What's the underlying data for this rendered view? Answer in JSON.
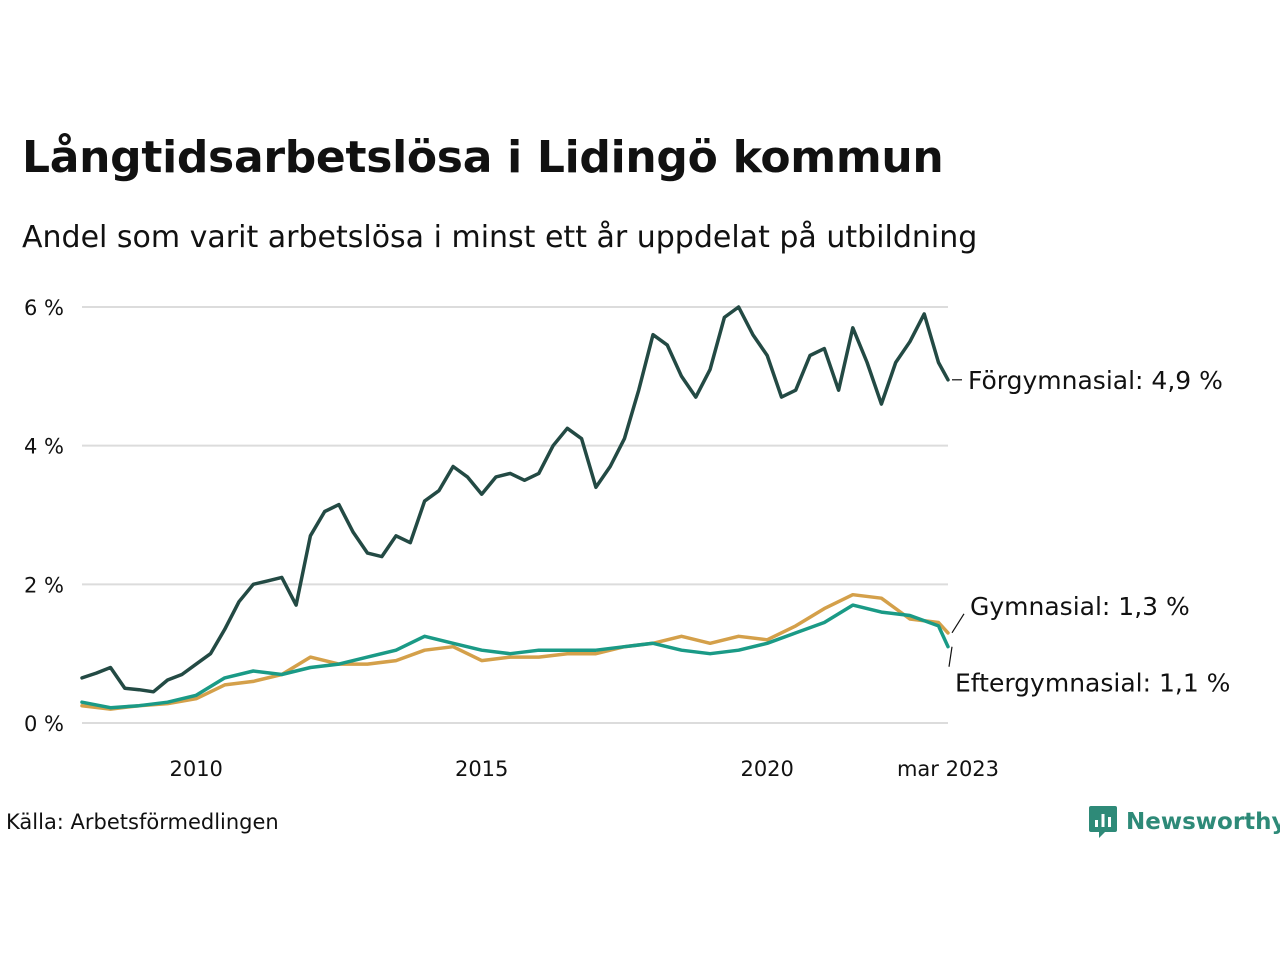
{
  "title": "Långtidsarbetslösa i Lidingö kommun",
  "subtitle": "Andel som varit arbetslösa i minst ett år uppdelat på utbildning",
  "source": "Källa: Arbetsförmedlingen",
  "brand": {
    "name": "Newsworthy",
    "color": "#2e8a78",
    "icon": "newsworthy-logo-icon"
  },
  "chart_data": {
    "type": "line",
    "title": "Långtidsarbetslösa i Lidingö kommun",
    "subtitle": "Andel som varit arbetslösa i minst ett år uppdelat på utbildning",
    "xlabel": "",
    "ylabel": "",
    "x_range": [
      "2008-01",
      "2023-03"
    ],
    "ylim": [
      0,
      6
    ],
    "y_ticks": [
      0,
      2,
      4,
      6
    ],
    "y_tick_labels": [
      "0 %",
      "2 %",
      "4 %",
      "6 %"
    ],
    "x_ticks": [
      {
        "x": "2010-01",
        "label": "2010"
      },
      {
        "x": "2015-01",
        "label": "2015"
      },
      {
        "x": "2020-01",
        "label": "2020"
      },
      {
        "x": "2023-03",
        "label": "mar 2023"
      }
    ],
    "grid": "horizontal",
    "legend": "direct labels at line ends",
    "series": [
      {
        "name": "Förgymnasial",
        "end_label": "Förgymnasial: 4,9 %",
        "color": "#234a44",
        "points": [
          [
            "2008-01",
            0.65
          ],
          [
            "2008-04",
            0.72
          ],
          [
            "2008-07",
            0.8
          ],
          [
            "2008-10",
            0.5
          ],
          [
            "2009-01",
            0.48
          ],
          [
            "2009-04",
            0.45
          ],
          [
            "2009-07",
            0.62
          ],
          [
            "2009-10",
            0.7
          ],
          [
            "2010-01",
            0.85
          ],
          [
            "2010-04",
            1.0
          ],
          [
            "2010-07",
            1.35
          ],
          [
            "2010-10",
            1.75
          ],
          [
            "2011-01",
            2.0
          ],
          [
            "2011-04",
            2.05
          ],
          [
            "2011-07",
            2.1
          ],
          [
            "2011-10",
            1.7
          ],
          [
            "2012-01",
            2.7
          ],
          [
            "2012-04",
            3.05
          ],
          [
            "2012-07",
            3.15
          ],
          [
            "2012-10",
            2.75
          ],
          [
            "2013-01",
            2.45
          ],
          [
            "2013-04",
            2.4
          ],
          [
            "2013-07",
            2.7
          ],
          [
            "2013-10",
            2.6
          ],
          [
            "2014-01",
            3.2
          ],
          [
            "2014-04",
            3.35
          ],
          [
            "2014-07",
            3.7
          ],
          [
            "2014-10",
            3.55
          ],
          [
            "2015-01",
            3.3
          ],
          [
            "2015-04",
            3.55
          ],
          [
            "2015-07",
            3.6
          ],
          [
            "2015-10",
            3.5
          ],
          [
            "2016-01",
            3.6
          ],
          [
            "2016-04",
            4.0
          ],
          [
            "2016-07",
            4.25
          ],
          [
            "2016-10",
            4.1
          ],
          [
            "2017-01",
            3.4
          ],
          [
            "2017-04",
            3.7
          ],
          [
            "2017-07",
            4.1
          ],
          [
            "2017-10",
            4.8
          ],
          [
            "2018-01",
            5.6
          ],
          [
            "2018-04",
            5.45
          ],
          [
            "2018-07",
            5.0
          ],
          [
            "2018-10",
            4.7
          ],
          [
            "2019-01",
            5.1
          ],
          [
            "2019-04",
            5.85
          ],
          [
            "2019-07",
            6.0
          ],
          [
            "2019-10",
            5.6
          ],
          [
            "2020-01",
            5.3
          ],
          [
            "2020-04",
            4.7
          ],
          [
            "2020-07",
            4.8
          ],
          [
            "2020-10",
            5.3
          ],
          [
            "2021-01",
            5.4
          ],
          [
            "2021-04",
            4.8
          ],
          [
            "2021-07",
            5.7
          ],
          [
            "2021-10",
            5.2
          ],
          [
            "2022-01",
            4.6
          ],
          [
            "2022-04",
            5.2
          ],
          [
            "2022-07",
            5.5
          ],
          [
            "2022-10",
            5.9
          ],
          [
            "2023-01",
            5.2
          ],
          [
            "2023-03",
            4.95
          ]
        ]
      },
      {
        "name": "Gymnasial",
        "end_label": "Gymnasial: 1,3 %",
        "color": "#d4a04a",
        "points": [
          [
            "2008-01",
            0.25
          ],
          [
            "2008-07",
            0.2
          ],
          [
            "2009-01",
            0.25
          ],
          [
            "2009-07",
            0.28
          ],
          [
            "2010-01",
            0.35
          ],
          [
            "2010-07",
            0.55
          ],
          [
            "2011-01",
            0.6
          ],
          [
            "2011-07",
            0.7
          ],
          [
            "2012-01",
            0.95
          ],
          [
            "2012-07",
            0.85
          ],
          [
            "2013-01",
            0.85
          ],
          [
            "2013-07",
            0.9
          ],
          [
            "2014-01",
            1.05
          ],
          [
            "2014-07",
            1.1
          ],
          [
            "2015-01",
            0.9
          ],
          [
            "2015-07",
            0.95
          ],
          [
            "2016-01",
            0.95
          ],
          [
            "2016-07",
            1.0
          ],
          [
            "2017-01",
            1.0
          ],
          [
            "2017-07",
            1.1
          ],
          [
            "2018-01",
            1.15
          ],
          [
            "2018-07",
            1.25
          ],
          [
            "2019-01",
            1.15
          ],
          [
            "2019-07",
            1.25
          ],
          [
            "2020-01",
            1.2
          ],
          [
            "2020-07",
            1.4
          ],
          [
            "2021-01",
            1.65
          ],
          [
            "2021-07",
            1.85
          ],
          [
            "2022-01",
            1.8
          ],
          [
            "2022-07",
            1.5
          ],
          [
            "2023-01",
            1.45
          ],
          [
            "2023-03",
            1.3
          ]
        ]
      },
      {
        "name": "Eftergymnasial",
        "end_label": "Eftergymnasial: 1,1 %",
        "color": "#1a9a86",
        "points": [
          [
            "2008-01",
            0.3
          ],
          [
            "2008-07",
            0.22
          ],
          [
            "2009-01",
            0.25
          ],
          [
            "2009-07",
            0.3
          ],
          [
            "2010-01",
            0.4
          ],
          [
            "2010-07",
            0.65
          ],
          [
            "2011-01",
            0.75
          ],
          [
            "2011-07",
            0.7
          ],
          [
            "2012-01",
            0.8
          ],
          [
            "2012-07",
            0.85
          ],
          [
            "2013-01",
            0.95
          ],
          [
            "2013-07",
            1.05
          ],
          [
            "2014-01",
            1.25
          ],
          [
            "2014-07",
            1.15
          ],
          [
            "2015-01",
            1.05
          ],
          [
            "2015-07",
            1.0
          ],
          [
            "2016-01",
            1.05
          ],
          [
            "2016-07",
            1.05
          ],
          [
            "2017-01",
            1.05
          ],
          [
            "2017-07",
            1.1
          ],
          [
            "2018-01",
            1.15
          ],
          [
            "2018-07",
            1.05
          ],
          [
            "2019-01",
            1.0
          ],
          [
            "2019-07",
            1.05
          ],
          [
            "2020-01",
            1.15
          ],
          [
            "2020-07",
            1.3
          ],
          [
            "2021-01",
            1.45
          ],
          [
            "2021-07",
            1.7
          ],
          [
            "2022-01",
            1.6
          ],
          [
            "2022-07",
            1.55
          ],
          [
            "2023-01",
            1.4
          ],
          [
            "2023-03",
            1.1
          ]
        ]
      }
    ]
  }
}
